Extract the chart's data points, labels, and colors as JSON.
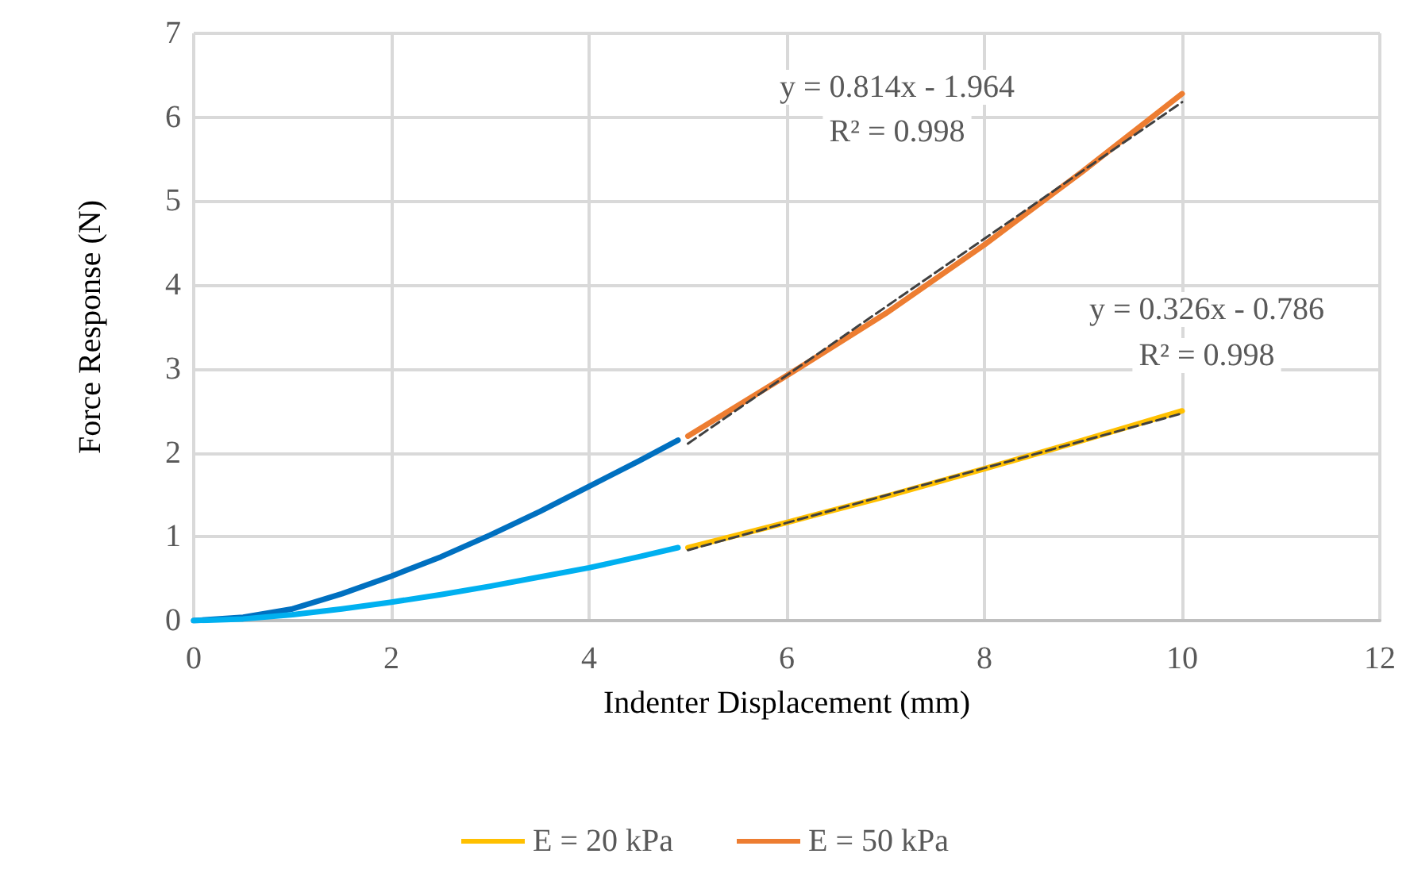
{
  "chart_data": {
    "type": "line",
    "xlabel": "Indenter Displacement (mm)",
    "ylabel": "Force Response (N)",
    "xlim": [
      0,
      12
    ],
    "xticks": [
      0,
      2,
      4,
      6,
      8,
      10,
      12
    ],
    "ylim": [
      0,
      7
    ],
    "yticks": [
      0,
      1,
      2,
      3,
      4,
      5,
      6,
      7
    ],
    "grid": true,
    "legend": "bottom",
    "marker": "none",
    "line_style": "solid",
    "series": [
      {
        "color": "#0070c0",
        "x": [
          0,
          0.5,
          1,
          1.5,
          2,
          2.5,
          3,
          3.5,
          4,
          4.5,
          4.9
        ],
        "values": [
          0,
          0.04,
          0.14,
          0.32,
          0.53,
          0.76,
          1.02,
          1.3,
          1.6,
          1.9,
          2.15
        ]
      },
      {
        "color": "#00b0f0",
        "x": [
          0,
          0.5,
          1,
          1.5,
          2,
          2.5,
          3,
          3.5,
          4,
          4.5,
          4.9
        ],
        "values": [
          0,
          0.02,
          0.07,
          0.14,
          0.22,
          0.31,
          0.41,
          0.52,
          0.63,
          0.76,
          0.87
        ]
      },
      {
        "name": "E = 20 kPa",
        "color": "#ffc000",
        "x": [
          5,
          6,
          7,
          8,
          9,
          10
        ],
        "values": [
          0.87,
          1.17,
          1.48,
          1.81,
          2.15,
          2.5
        ]
      },
      {
        "name": "E = 50 kPa",
        "color": "#ed7d31",
        "x": [
          5,
          6,
          7,
          8,
          9,
          10
        ],
        "values": [
          2.2,
          2.92,
          3.66,
          4.48,
          5.36,
          6.28
        ]
      },
      {
        "color": "#404040",
        "line_style": "dashed",
        "x": [
          5,
          10
        ],
        "values": [
          0.84,
          2.47
        ]
      },
      {
        "color": "#404040",
        "line_style": "dashed",
        "x": [
          5,
          10
        ],
        "values": [
          2.11,
          6.18
        ]
      }
    ],
    "annotations": [
      "y = 0.814x - 1.964",
      "R² = 0.998",
      "y = 0.326x - 0.786",
      "R² = 0.998"
    ]
  }
}
